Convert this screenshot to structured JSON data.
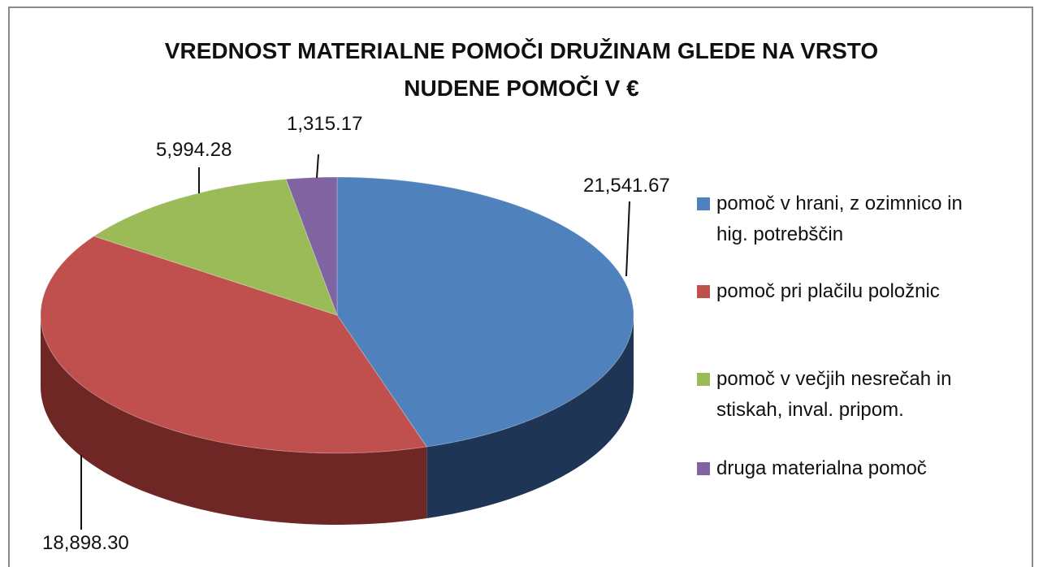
{
  "chart_data": {
    "type": "pie3d",
    "title": "VREDNOST MATERIALNE POMOČI DRUŽINAM GLEDE NA VRSTO NUDENE POMOČI  V  €",
    "categories": [
      "pomoč v hrani, z ozimnico in  hig. potrebščin",
      "pomoč pri plačilu položnic",
      "pomoč v večjih nesrečah in stiskah, inval. pripom.",
      "druga materialna pomoč"
    ],
    "values": [
      21541.67,
      18898.3,
      5994.28,
      1315.17
    ],
    "value_labels": [
      "21,541.67",
      "18,898.30",
      "5,994.28",
      "1,315.17"
    ],
    "colors": [
      "#4f81bd",
      "#c0504d",
      "#9bbb59",
      "#8064a2"
    ],
    "side_colors": [
      "#1f3555",
      "#6e2725",
      "#566b2f",
      "#4a3a60"
    ],
    "legend": "right"
  }
}
